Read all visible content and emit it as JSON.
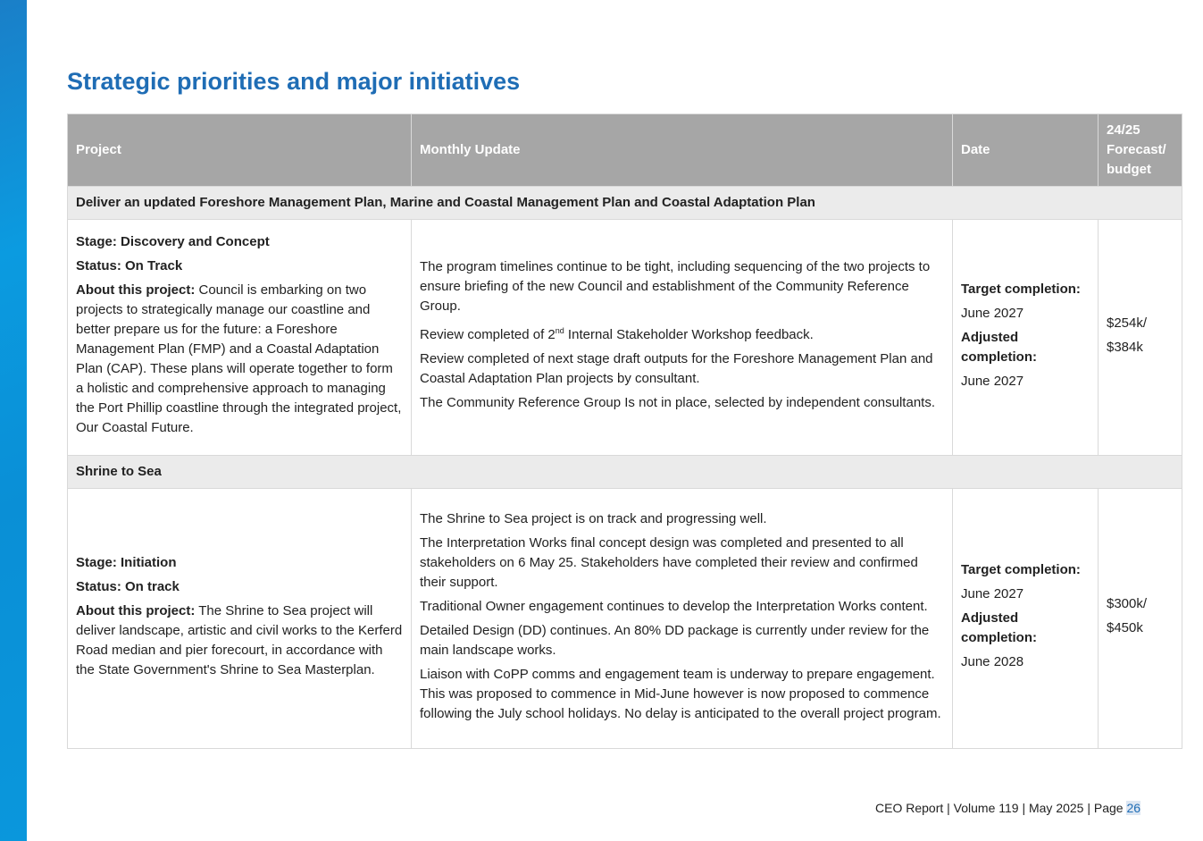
{
  "title": "Strategic priorities and major initiatives",
  "table": {
    "headers": [
      "Project",
      "Monthly Update",
      "Date",
      "24/25 Forecast/ budget"
    ],
    "sections": [
      {
        "heading": "Deliver an updated Foreshore Management Plan, Marine and Coastal Management Plan and Coastal Adaptation Plan",
        "stage": "Stage: Discovery and Concept",
        "status": "Status: On Track",
        "about_label": "About this project:",
        "about_text": " Council is embarking on two projects to strategically manage our coastline and better prepare us for the future: a Foreshore Management Plan (FMP) and a Coastal Adaptation Plan (CAP). These plans will operate together to form a holistic and comprehensive approach to managing the Port Phillip coastline through the integrated project, Our Coastal Future.",
        "updates": [
          "The program timelines continue to be tight, including sequencing of the two projects to ensure briefing of the new Council and establishment of the Community Reference Group.",
          {
            "text": "Review completed of 2",
            "superscript": "nd",
            "rest": " Internal Stakeholder Workshop feedback."
          },
          "Review completed of next stage draft outputs for the Foreshore Management Plan and Coastal Adaptation Plan projects by consultant.",
          "The Community Reference Group Is not in place, selected by independent consultants."
        ],
        "target_label": "Target completion:",
        "target_date": "June 2027",
        "adjusted_label": "Adjusted completion:",
        "adjusted_date": "June 2027",
        "forecast": "$254k/",
        "budget": "$384k"
      },
      {
        "heading": "Shrine to Sea",
        "stage": "Stage: Initiation",
        "status": "Status: On track",
        "about_label": "About this project:",
        "about_text": " The Shrine to Sea project will deliver landscape, artistic and civil works to the Kerferd Road median and pier forecourt, in accordance with the State Government's Shrine to Sea Masterplan.",
        "updates": [
          "The Shrine to Sea project is on track and progressing well.",
          "The Interpretation Works final concept design was completed and presented to all stakeholders on 6 May 25. Stakeholders have completed their review and confirmed their support.",
          "Traditional Owner engagement continues to develop the Interpretation Works content.",
          "Detailed Design (DD) continues. An 80% DD package is currently under review for the main landscape works.",
          "Liaison with CoPP comms and engagement team is underway to prepare engagement. This was proposed to commence in Mid-June however is now proposed to commence following the July school holidays.  No delay is anticipated to the overall project program."
        ],
        "target_label": "Target completion:",
        "target_date": "June 2027",
        "adjusted_label": "Adjusted completion:",
        "adjusted_date": "June 2028",
        "forecast": "$300k/",
        "budget": "$450k"
      }
    ]
  },
  "footer": {
    "text": "CEO Report | Volume 119 | May 2025 | Page ",
    "page": "26"
  }
}
